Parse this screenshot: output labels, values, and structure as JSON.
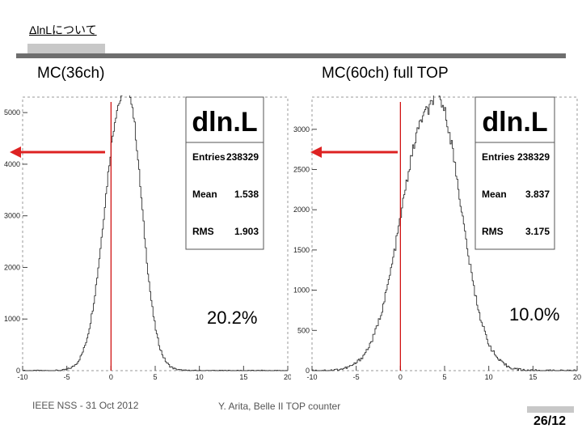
{
  "slide": {
    "title": "ΔlnLについて",
    "footer_left": "IEEE NSS - 31 Oct 2012",
    "footer_center": "Y. Arita, Belle II TOP counter",
    "page_number": "26/12"
  },
  "panels": [
    {
      "label": "MC(36ch)",
      "percent": "20.2%",
      "stats": {
        "title": "dln.L",
        "entries_label": "Entries",
        "entries": "238329",
        "mean_label": "Mean",
        "mean": "1.538",
        "rms_label": "RMS",
        "rms": "1.903"
      }
    },
    {
      "label": "MC(60ch) full TOP",
      "percent": "10.0%",
      "stats": {
        "title": "dln.L",
        "entries_label": "Entries",
        "entries": "238329",
        "mean_label": "Mean",
        "mean": "3.837",
        "rms_label": "RMS",
        "rms": "3.175"
      }
    }
  ],
  "chart_data": [
    {
      "type": "histogram",
      "xlim": [
        -10,
        20
      ],
      "ylim": [
        0,
        5300
      ],
      "x_ticks": [
        "-10",
        "-5",
        "0",
        "5",
        "10",
        "15",
        "20"
      ],
      "y_ticks": [
        "0",
        "1000",
        "2000",
        "3000",
        "4000",
        "5000"
      ],
      "cut_value": 0,
      "peak_x": 1.2,
      "peak_y": 5250,
      "sigma": 1.9,
      "cut_line_color": "#cc0000"
    },
    {
      "type": "histogram",
      "xlim": [
        -10,
        20
      ],
      "ylim": [
        0,
        3400
      ],
      "x_ticks": [
        "-10",
        "-5",
        "0",
        "5",
        "10",
        "15",
        "20"
      ],
      "y_ticks": [
        "0",
        "500",
        "1000",
        "1500",
        "2000",
        "2500",
        "3000"
      ],
      "cut_value": 0,
      "peak_x": 3.2,
      "peak_y": 3230,
      "sigma": 3.1,
      "cut_line_color": "#cc0000"
    }
  ],
  "colors": {
    "arrow": "#dd2222",
    "rule": "#6e6e6e"
  }
}
